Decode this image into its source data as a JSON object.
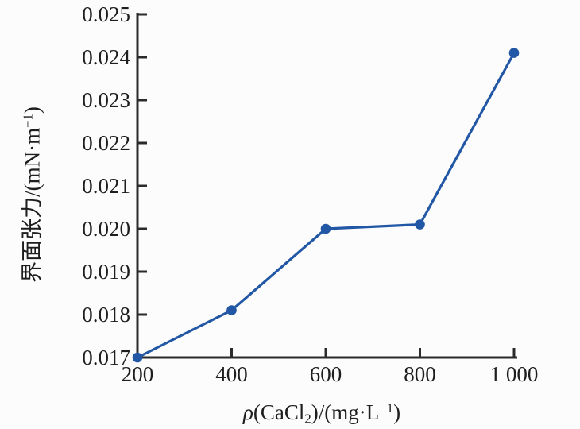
{
  "figure": {
    "background": "#fcfcfc"
  },
  "chart_data": {
    "type": "line",
    "title": "",
    "x": [
      200,
      400,
      600,
      800,
      1000
    ],
    "y": [
      0.017,
      0.0181,
      0.02,
      0.0201,
      0.0241
    ],
    "xlabel": "ρ(CaCl₂)/(mg·L⁻¹)",
    "ylabel": "界面张力/(mN·m⁻¹)",
    "xlim": [
      200,
      1000
    ],
    "ylim": [
      0.017,
      0.025
    ],
    "grid": false,
    "legend": "none",
    "marker": "filled-circle",
    "line_color": "#2257a6",
    "axis_color": "#2b2b2b",
    "text_color": "#1e1e1e",
    "x_ticks": {
      "values": [
        200,
        400,
        600,
        800,
        1000
      ],
      "labels": [
        "200",
        "400",
        "600",
        "800",
        "1 000"
      ]
    },
    "y_ticks": {
      "values": [
        0.017,
        0.018,
        0.019,
        0.02,
        0.021,
        0.022,
        0.023,
        0.024,
        0.025
      ],
      "labels": [
        "0.017",
        "0.018",
        "0.019",
        "0.020",
        "0.021",
        "0.022",
        "0.023",
        "0.024",
        "0.025"
      ]
    },
    "xlabel_parts": {
      "rho": "ρ",
      "open": "(CaCl",
      "sub": "2",
      "mid": ")/(mg·L",
      "sup": "−1",
      "close": ")"
    },
    "ylabel_parts": {
      "main": "界面张力/(mN·m",
      "sup": "−1",
      "close": ")"
    }
  }
}
